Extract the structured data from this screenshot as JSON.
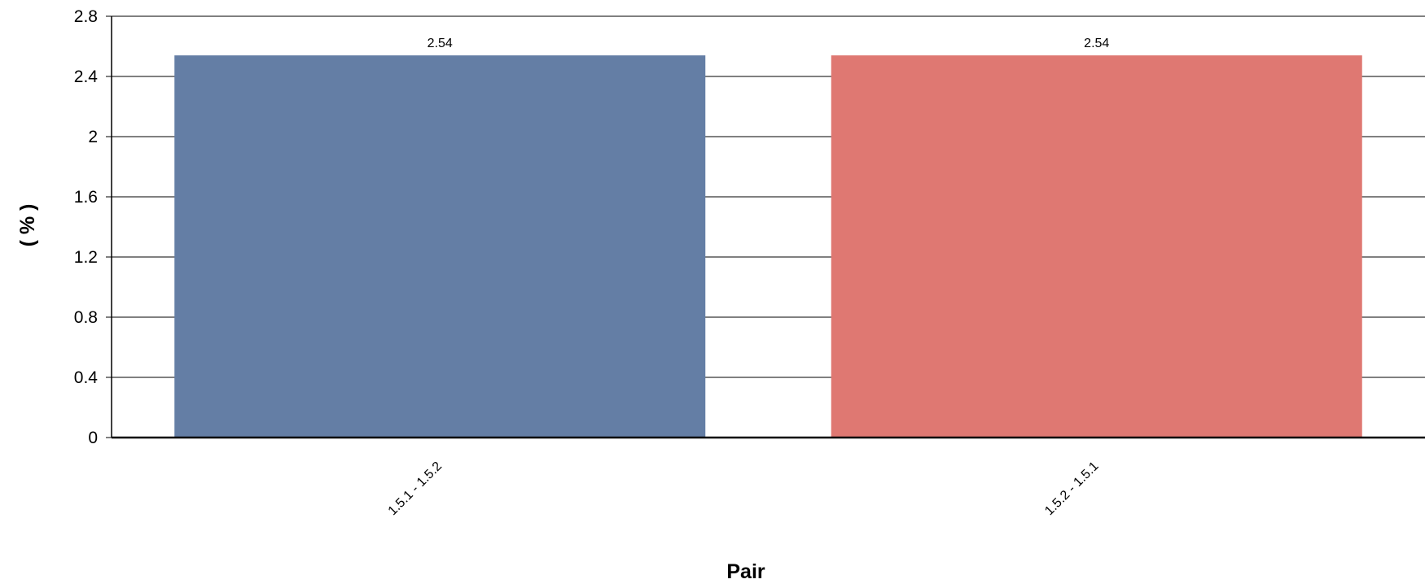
{
  "chart_data": {
    "type": "bar",
    "categories": [
      "1.5.1 - 1.5.2",
      "1.5.2 - 1.5.1"
    ],
    "values": [
      2.54,
      2.54
    ],
    "data_labels": [
      "2.54",
      "2.54"
    ],
    "colors": [
      "#647ea5",
      "#df7872"
    ],
    "title": "",
    "xlabel": "Pair",
    "ylabel": "( % )",
    "ylim": [
      0,
      2.8
    ],
    "yticks": [
      0,
      0.4,
      0.8,
      1.2,
      1.6,
      2,
      2.4,
      2.8
    ],
    "ytick_labels": [
      "0",
      "0.4",
      "0.8",
      "1.2",
      "1.6",
      "2",
      "2.4",
      "2.8"
    ],
    "grid": "horizontal",
    "legend": "none"
  }
}
